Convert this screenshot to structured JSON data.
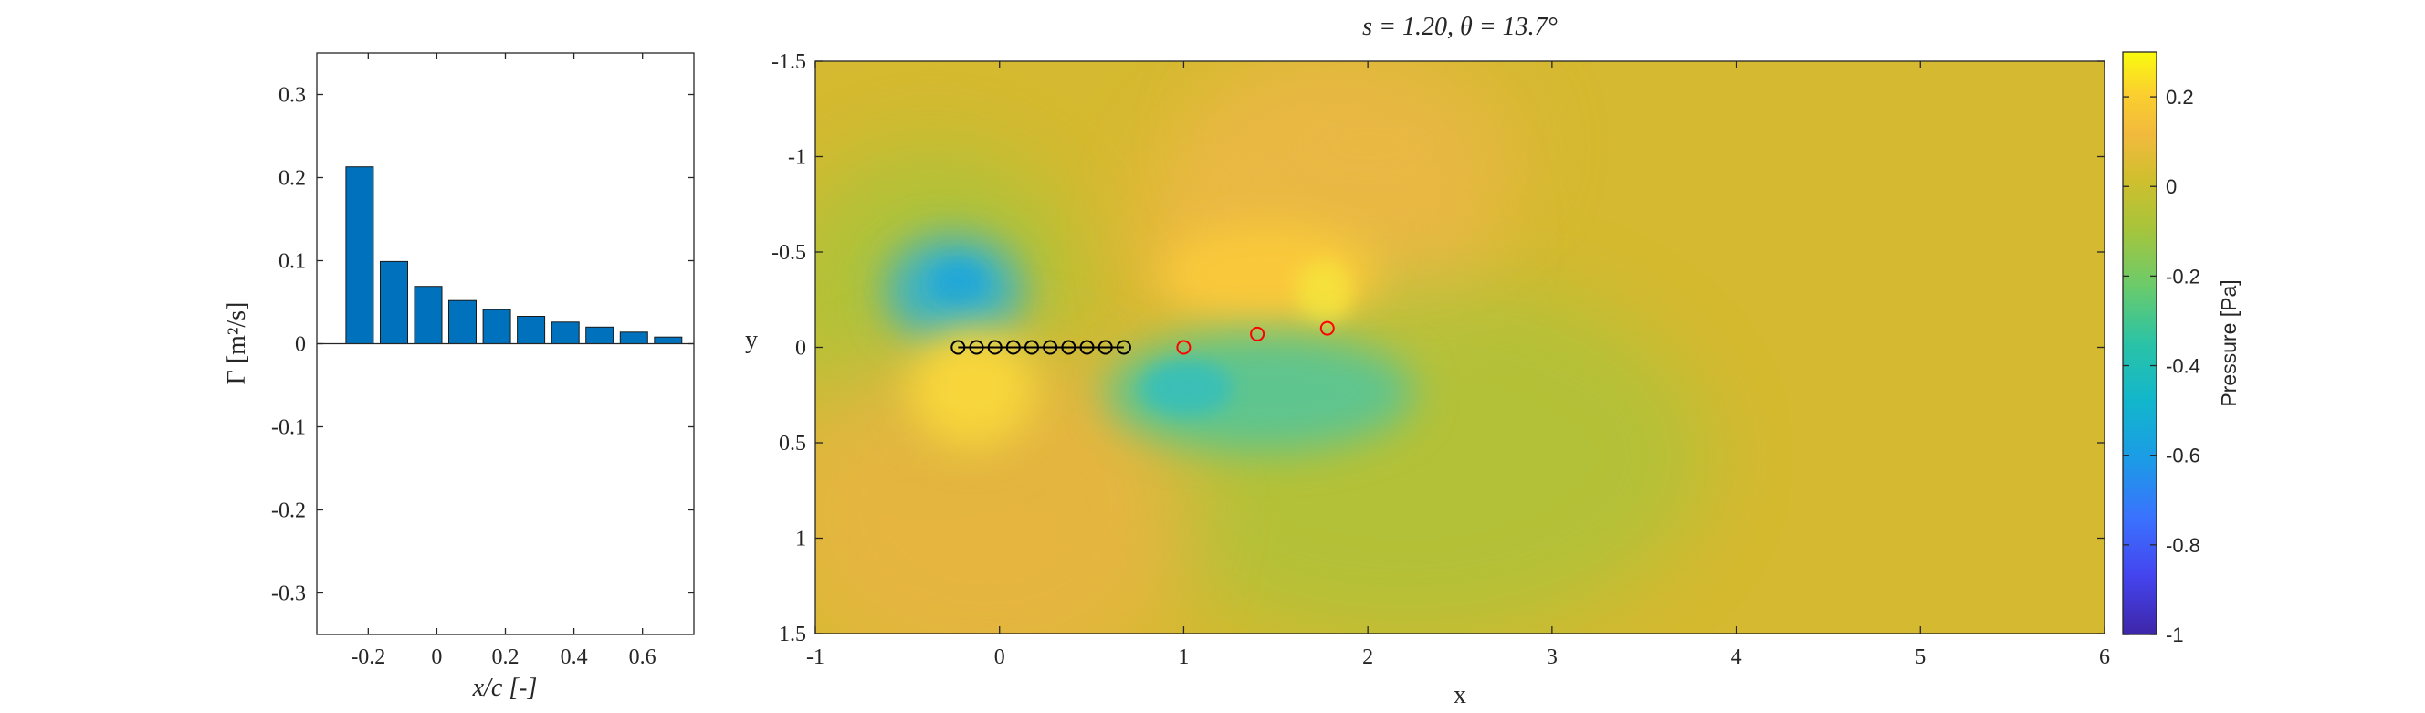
{
  "chart_data": [
    {
      "type": "bar",
      "title": "",
      "xlabel": "x/c [-]",
      "ylabel": "Γ [m²/s]",
      "xlim": [
        -0.35,
        0.75
      ],
      "ylim": [
        -0.35,
        0.35
      ],
      "xticks": [
        -0.2,
        0,
        0.2,
        0.4,
        0.6
      ],
      "xtick_labels": [
        "-0.2",
        "0",
        "0.2",
        "0.4",
        "0.6"
      ],
      "yticks": [
        -0.3,
        -0.2,
        -0.1,
        0,
        0.1,
        0.2,
        0.3
      ],
      "ytick_labels": [
        "-0.3",
        "-0.2",
        "-0.1",
        "0",
        "0.1",
        "0.2",
        "0.3"
      ],
      "bar_color": "#0072BD",
      "x": [
        -0.225,
        -0.125,
        -0.025,
        0.075,
        0.175,
        0.275,
        0.375,
        0.475,
        0.575,
        0.675
      ],
      "values": [
        0.213,
        0.099,
        0.069,
        0.052,
        0.041,
        0.033,
        0.026,
        0.02,
        0.014,
        0.008
      ],
      "grid": false
    },
    {
      "type": "heatmap",
      "title": "s = 1.20, θ = 13.7°",
      "xlabel": "x",
      "ylabel": "y",
      "xlim": [
        -1,
        6
      ],
      "ylim": [
        -1.5,
        1.5
      ],
      "y_axis_reversed": true,
      "xticks": [
        -1,
        0,
        1,
        2,
        3,
        4,
        5,
        6
      ],
      "xtick_labels": [
        "-1",
        "0",
        "1",
        "2",
        "3",
        "4",
        "5",
        "6"
      ],
      "yticks": [
        -1.5,
        -1,
        -0.5,
        0,
        0.5,
        1,
        1.5
      ],
      "ytick_labels": [
        "-1.5",
        "-1",
        "-0.5",
        "0",
        "0.5",
        "1",
        "1.5"
      ],
      "field": "Pressure",
      "colormap": "parula",
      "colorbar": {
        "label": "Pressure [Pa]",
        "range": [
          -1,
          0.3
        ],
        "ticks": [
          -1,
          -0.8,
          -0.6,
          -0.4,
          -0.2,
          0,
          0.2
        ],
        "tick_labels": [
          "-1",
          "-0.8",
          "-0.6",
          "-0.4",
          "-0.2",
          "0",
          "0.2"
        ],
        "placement": "right"
      },
      "pressure_features": [
        {
          "x": -0.2,
          "y": -0.35,
          "value": -0.35
        },
        {
          "x": -0.15,
          "y": 0.25,
          "value": 0.18
        },
        {
          "x": 1.1,
          "y": -0.35,
          "value": 0.15
        },
        {
          "x": 1.75,
          "y": -0.25,
          "value": 0.2
        },
        {
          "x": 1.7,
          "y": 0.3,
          "value": -0.3
        }
      ],
      "series": [
        {
          "marker": "circle",
          "color": "#000000",
          "connected": true,
          "points": [
            [
              -0.225,
              0
            ],
            [
              -0.125,
              0
            ],
            [
              -0.025,
              0
            ],
            [
              0.075,
              0
            ],
            [
              0.175,
              0
            ],
            [
              0.275,
              0
            ],
            [
              0.375,
              0
            ],
            [
              0.475,
              0
            ],
            [
              0.575,
              0
            ],
            [
              0.675,
              0
            ]
          ]
        },
        {
          "marker": "circle",
          "color": "#FF0000",
          "connected": false,
          "points": [
            [
              1.0,
              0.0
            ],
            [
              1.4,
              -0.07
            ],
            [
              1.78,
              -0.1
            ]
          ]
        }
      ],
      "grid": false
    }
  ]
}
